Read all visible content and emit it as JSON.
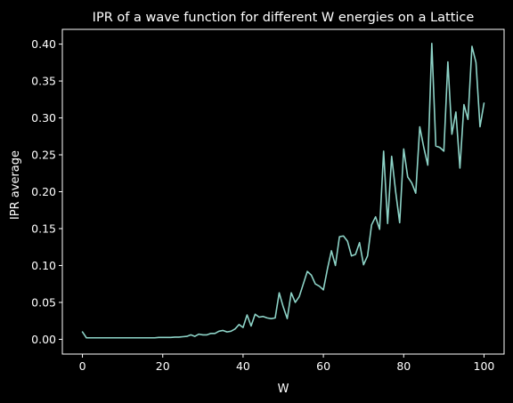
{
  "chart_data": {
    "type": "line",
    "title": "IPR of a wave function for different W energies on a Lattice",
    "xlabel": "W",
    "ylabel": "IPR average",
    "xlim": [
      -5,
      105
    ],
    "ylim": [
      -0.02,
      0.42
    ],
    "xticks": [
      0,
      20,
      40,
      60,
      80,
      100
    ],
    "xtick_labels": [
      "0",
      "20",
      "40",
      "60",
      "80",
      "100"
    ],
    "yticks": [
      0.0,
      0.05,
      0.1,
      0.15,
      0.2,
      0.25,
      0.3,
      0.35,
      0.4
    ],
    "ytick_labels": [
      "0.00",
      "0.05",
      "0.10",
      "0.15",
      "0.20",
      "0.25",
      "0.30",
      "0.35",
      "0.40"
    ],
    "grid": false,
    "legend": "none",
    "line_color": "#8dd3c7",
    "background": "#000000",
    "foreground": "#ffffff",
    "series": [
      {
        "x": [
          0,
          1,
          2,
          3,
          4,
          5,
          6,
          7,
          8,
          9,
          10,
          11,
          12,
          13,
          14,
          15,
          16,
          17,
          18,
          19,
          20,
          21,
          22,
          23,
          24,
          25,
          26,
          27,
          28,
          29,
          30,
          31,
          32,
          33,
          34,
          35,
          36,
          37,
          38,
          39,
          40,
          41,
          42,
          43,
          44,
          45,
          46,
          47,
          48,
          49,
          50,
          51,
          52,
          53,
          54,
          55,
          56,
          57,
          58,
          59,
          60,
          61,
          62,
          63,
          64,
          65,
          66,
          67,
          68,
          69,
          70,
          71,
          72,
          73,
          74,
          75,
          76,
          77,
          78,
          79,
          80,
          81,
          82,
          83,
          84,
          85,
          86,
          87,
          88,
          89,
          90,
          91,
          92,
          93,
          94,
          95,
          96,
          97,
          98,
          99,
          100
        ],
        "values": [
          0.01,
          0.002,
          0.002,
          0.002,
          0.002,
          0.002,
          0.002,
          0.002,
          0.002,
          0.002,
          0.002,
          0.002,
          0.002,
          0.002,
          0.002,
          0.002,
          0.002,
          0.002,
          0.002,
          0.0025,
          0.0025,
          0.0025,
          0.0025,
          0.003,
          0.003,
          0.0035,
          0.004,
          0.006,
          0.004,
          0.007,
          0.006,
          0.006,
          0.008,
          0.008,
          0.011,
          0.012,
          0.01,
          0.011,
          0.014,
          0.02,
          0.016,
          0.033,
          0.018,
          0.034,
          0.03,
          0.031,
          0.029,
          0.028,
          0.029,
          0.063,
          0.044,
          0.028,
          0.063,
          0.05,
          0.058,
          0.075,
          0.092,
          0.087,
          0.075,
          0.072,
          0.067,
          0.095,
          0.12,
          0.1,
          0.139,
          0.14,
          0.133,
          0.113,
          0.115,
          0.131,
          0.101,
          0.113,
          0.155,
          0.166,
          0.149,
          0.255,
          0.157,
          0.248,
          0.2,
          0.158,
          0.258,
          0.22,
          0.212,
          0.198,
          0.288,
          0.26,
          0.236,
          0.401,
          0.262,
          0.26,
          0.255,
          0.376,
          0.278,
          0.308,
          0.232,
          0.318,
          0.298,
          0.397,
          0.375,
          0.288,
          0.32
        ]
      }
    ]
  }
}
